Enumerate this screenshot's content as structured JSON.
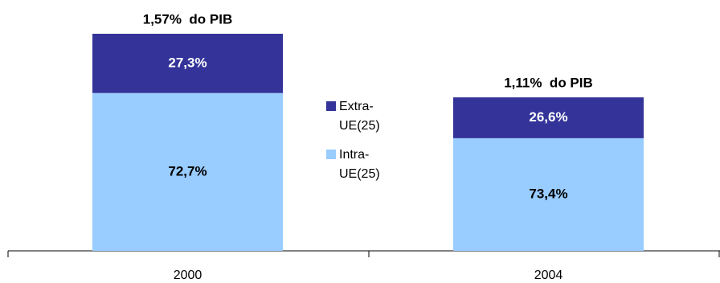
{
  "chart_data": {
    "type": "stacked-bar",
    "categories": [
      "2000",
      "2004"
    ],
    "series": [
      {
        "name": "Extra-UE(25)",
        "color": "#333399",
        "values": [
          27.3,
          26.6
        ],
        "value_labels": [
          "27,3%",
          "26,6%"
        ]
      },
      {
        "name": "Intra-UE(25)",
        "color": "#99ccff",
        "values": [
          72.7,
          73.4
        ],
        "value_labels": [
          "72,7%",
          "73,4%"
        ]
      }
    ],
    "totals": {
      "values": [
        1.57,
        1.11
      ],
      "value_labels": [
        "1,57%  do PIB",
        "1,11%  do PIB"
      ]
    }
  }
}
